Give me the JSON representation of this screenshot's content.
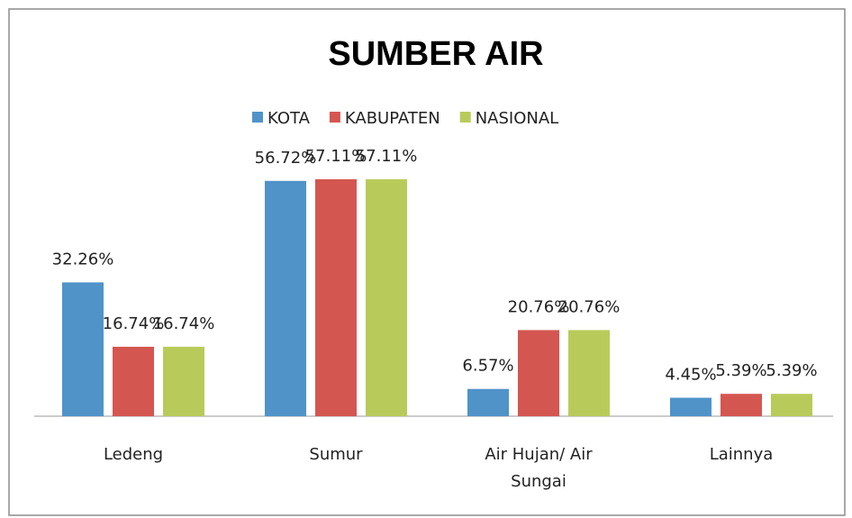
{
  "chart_data": {
    "type": "bar",
    "title": "SUMBER AIR",
    "categories": [
      "Ledeng",
      "Sumur",
      "Air Hujan/ Air Sungai",
      "Lainnya"
    ],
    "series": [
      {
        "name": "KOTA",
        "color": "#4f93c9",
        "values": [
          32.26,
          56.72,
          6.57,
          4.45
        ],
        "value_labels": [
          "32.26%",
          "56.72%",
          "6.57%",
          "4.45%"
        ]
      },
      {
        "name": "KABUPATEN",
        "color": "#d45650",
        "values": [
          16.74,
          57.11,
          20.76,
          5.39
        ],
        "value_labels": [
          "16.74%",
          "57.11%",
          "20.76%",
          "5.39%"
        ]
      },
      {
        "name": "NASIONAL",
        "color": "#b8cb5a",
        "values": [
          16.74,
          57.11,
          20.76,
          5.39
        ],
        "value_labels": [
          "16.74%",
          "57.11%",
          "20.76%",
          "5.39%"
        ]
      }
    ],
    "legend": "top"
  }
}
